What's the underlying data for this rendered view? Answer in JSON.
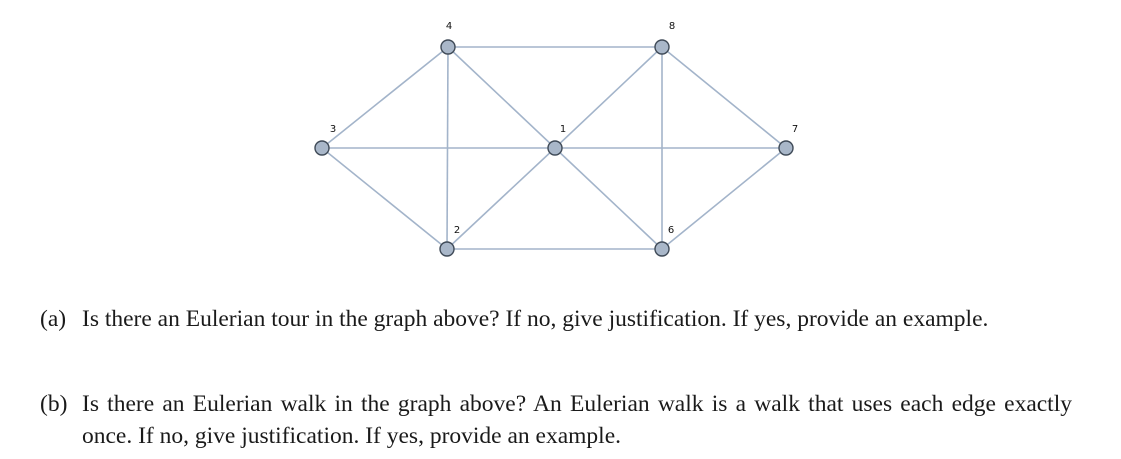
{
  "graph": {
    "nodes": [
      {
        "id": "1",
        "label": "1"
      },
      {
        "id": "2",
        "label": "2"
      },
      {
        "id": "3",
        "label": "3"
      },
      {
        "id": "4",
        "label": "4"
      },
      {
        "id": "6",
        "label": "6"
      },
      {
        "id": "7",
        "label": "7"
      },
      {
        "id": "8",
        "label": "8"
      }
    ],
    "edges": [
      [
        "3",
        "4"
      ],
      [
        "3",
        "1"
      ],
      [
        "3",
        "2"
      ],
      [
        "4",
        "8"
      ],
      [
        "4",
        "1"
      ],
      [
        "4",
        "2"
      ],
      [
        "2",
        "1"
      ],
      [
        "2",
        "6"
      ],
      [
        "1",
        "8"
      ],
      [
        "1",
        "6"
      ],
      [
        "1",
        "7"
      ],
      [
        "8",
        "6"
      ],
      [
        "8",
        "7"
      ],
      [
        "6",
        "7"
      ]
    ],
    "colors": {
      "edge": "#a3b4ca",
      "node_fill": "#a9b7c9",
      "node_stroke": "#3f4a57"
    }
  },
  "questions": {
    "a": {
      "marker": "(a)",
      "text": "Is there an Eulerian tour in the graph above? If no, give justification.  If yes, provide an example."
    },
    "b": {
      "marker": "(b)",
      "text": "Is there an Eulerian walk in the graph above? An Eulerian walk is a walk that uses each edge exactly once. If no, give justification. If yes, provide an example."
    }
  }
}
